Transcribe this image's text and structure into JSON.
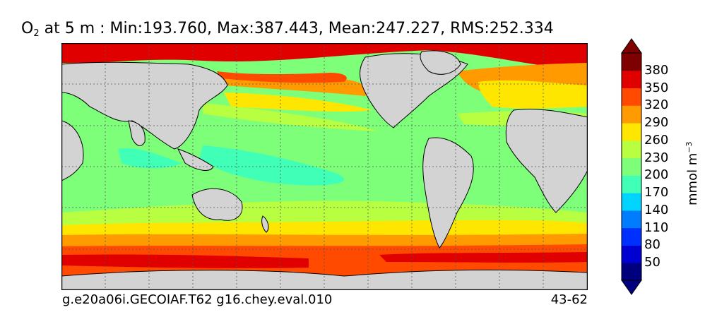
{
  "title": {
    "variable": "O",
    "subscript": "2",
    "rest": "at 5 m : Min:193.760, Max:387.443, Mean:247.227, RMS:252.334"
  },
  "footer": {
    "left": "g.e20a06i.GECOIAF.T62 g16.chey.eval.010",
    "right": "43-62"
  },
  "colorbar": {
    "units_base": "mmol m",
    "units_exp": "−3",
    "levels": [
      "50",
      "80",
      "110",
      "140",
      "170",
      "200",
      "230",
      "260",
      "290",
      "320",
      "350",
      "380"
    ],
    "colors": [
      "#00007f",
      "#0000d0",
      "#0030ff",
      "#007dff",
      "#00d4ff",
      "#40ffb7",
      "#7dff7a",
      "#b7ff40",
      "#ffe600",
      "#ff9a00",
      "#ff4a00",
      "#e10000",
      "#7f0000"
    ],
    "extend": "both"
  },
  "map": {
    "land_color": "#d3d3d3",
    "projection": "cylindrical",
    "gridlines": "dotted"
  }
}
